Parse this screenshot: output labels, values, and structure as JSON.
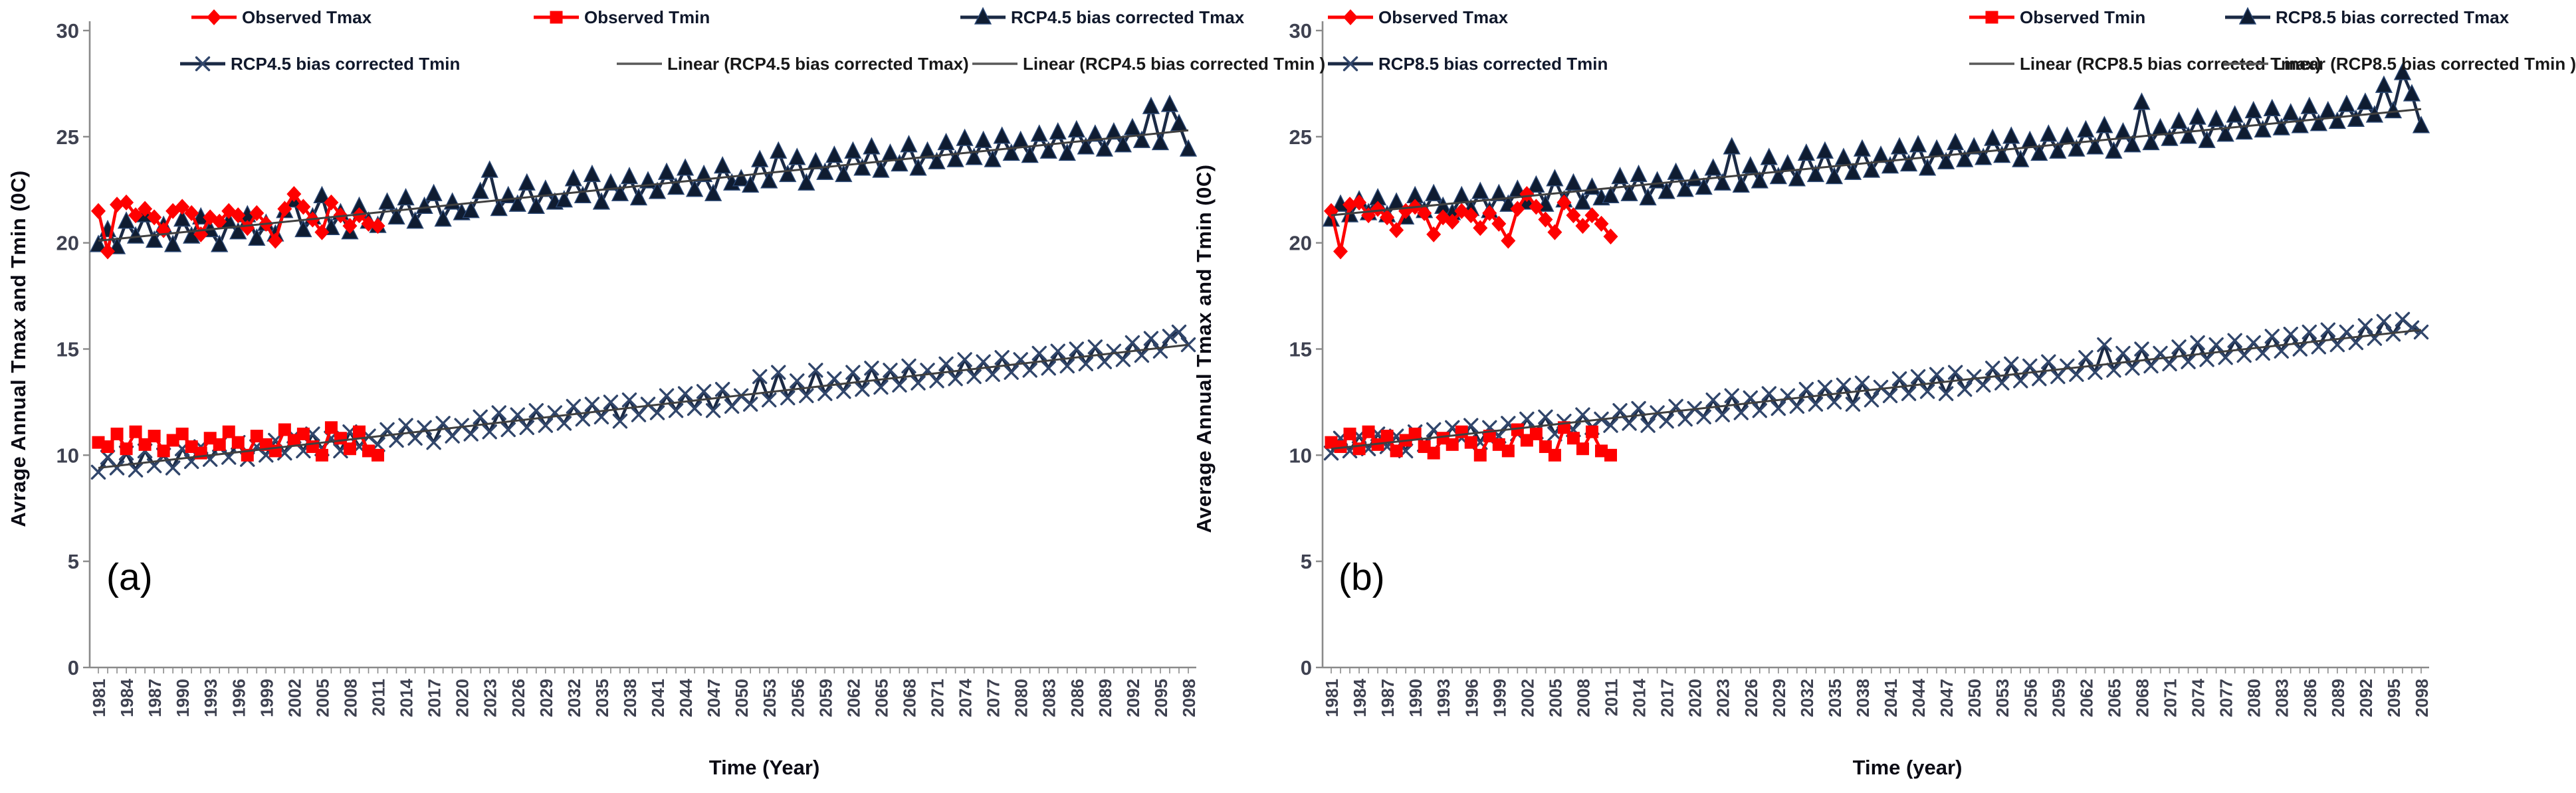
{
  "chart_data": [
    {
      "id": "a",
      "type": "line",
      "panel_label": "(a)",
      "xlabel": "Time (Year)",
      "ylabel": "Avrage Annual Tmax and Tmin (0C)",
      "ylim": [
        0,
        30
      ],
      "y_tick_step": 5,
      "y_tick_labels": [
        "0",
        "5",
        "10",
        "15",
        "20",
        "25",
        "30"
      ],
      "x_start": 1981,
      "x_end": 2098,
      "x_label_step": 3,
      "x_tick_labels": [
        "1981",
        "1984",
        "1987",
        "1990",
        "1993",
        "1996",
        "1999",
        "2002",
        "2005",
        "2008",
        "2011",
        "2014",
        "2017",
        "2020",
        "2023",
        "2026",
        "2029",
        "2032",
        "2035",
        "2038",
        "2041",
        "2044",
        "2047",
        "2050",
        "2053",
        "2056",
        "2059",
        "2062",
        "2065",
        "2068",
        "2071",
        "2074",
        "2077",
        "2080",
        "2083",
        "2086",
        "2089",
        "2092",
        "2095",
        "2098"
      ],
      "legend_rows": [
        [
          0,
          1,
          2
        ],
        [
          3,
          4,
          5
        ]
      ],
      "series": [
        {
          "name": "Observed Tmax",
          "kind": "line",
          "marker": "diamond",
          "color": "#FE0000",
          "year_start": 1981,
          "values": [
            21.5,
            19.6,
            21.8,
            21.9,
            21.3,
            21.6,
            21.2,
            20.6,
            21.5,
            21.7,
            21.4,
            20.4,
            21.2,
            21.0,
            21.5,
            21.3,
            20.7,
            21.4,
            20.9,
            20.1,
            21.6,
            22.3,
            21.7,
            21.1,
            20.5,
            21.9,
            21.3,
            20.8,
            21.3,
            20.9,
            20.8
          ]
        },
        {
          "name": "Observed Tmin",
          "kind": "line",
          "marker": "square",
          "color": "#FE0000",
          "year_start": 1981,
          "values": [
            10.6,
            10.4,
            11.0,
            10.3,
            11.1,
            10.5,
            10.9,
            10.2,
            10.7,
            11.0,
            10.4,
            10.1,
            10.8,
            10.5,
            11.1,
            10.6,
            10.0,
            10.9,
            10.5,
            10.2,
            11.2,
            10.7,
            11.0,
            10.4,
            10.0,
            11.3,
            10.8,
            10.3,
            11.1,
            10.2,
            10.0
          ]
        },
        {
          "name": "RCP4.5 bias corrected Tmax",
          "kind": "line",
          "marker": "triangle",
          "color": "#1B2A45",
          "year_start": 1981,
          "values": [
            19.9,
            20.6,
            19.8,
            21.0,
            20.3,
            21.3,
            20.1,
            20.8,
            19.9,
            21.1,
            20.3,
            21.2,
            20.6,
            19.9,
            21.0,
            20.5,
            21.3,
            20.2,
            20.9,
            20.4,
            21.5,
            22.0,
            20.6,
            21.2,
            22.2,
            20.7,
            21.4,
            20.5,
            21.7,
            21.0,
            20.8,
            21.9,
            21.2,
            22.1,
            21.0,
            21.7,
            22.3,
            21.1,
            21.9,
            21.4,
            21.5,
            22.4,
            23.4,
            21.6,
            22.2,
            21.8,
            22.8,
            21.7,
            22.5,
            21.9,
            22.0,
            23.0,
            22.2,
            23.2,
            21.9,
            22.8,
            22.3,
            23.1,
            22.1,
            22.9,
            22.4,
            23.3,
            22.6,
            23.5,
            22.5,
            23.2,
            22.3,
            23.6,
            22.8,
            23.0,
            22.7,
            23.9,
            22.9,
            24.3,
            23.2,
            24.0,
            22.8,
            23.8,
            23.3,
            24.1,
            23.2,
            24.3,
            23.5,
            24.5,
            23.4,
            24.2,
            23.7,
            24.6,
            23.5,
            24.3,
            23.8,
            24.7,
            23.9,
            24.9,
            24.0,
            24.8,
            23.9,
            25.0,
            24.2,
            24.8,
            24.1,
            25.1,
            24.3,
            25.2,
            24.2,
            25.3,
            24.5,
            25.1,
            24.4,
            25.2,
            24.6,
            25.4,
            24.8,
            26.4,
            24.7,
            26.5,
            25.6,
            24.4
          ]
        },
        {
          "name": "RCP4.5 bias corrected Tmin",
          "kind": "line",
          "marker": "x",
          "color": "#1B2A45",
          "year_start": 1981,
          "values": [
            9.2,
            9.9,
            9.4,
            10.1,
            9.3,
            10.2,
            9.5,
            10.0,
            9.4,
            10.3,
            9.7,
            10.4,
            9.8,
            10.5,
            9.9,
            10.6,
            9.8,
            10.4,
            10.0,
            10.7,
            10.1,
            10.9,
            10.2,
            11.0,
            10.3,
            10.8,
            10.2,
            11.1,
            10.4,
            10.9,
            10.5,
            11.2,
            10.7,
            11.4,
            10.8,
            11.3,
            10.6,
            11.5,
            10.9,
            11.4,
            11.0,
            11.8,
            11.1,
            12.0,
            11.2,
            11.9,
            11.3,
            12.1,
            11.4,
            12.0,
            11.5,
            12.3,
            11.7,
            12.4,
            11.8,
            12.5,
            11.6,
            12.6,
            11.9,
            12.4,
            12.0,
            12.8,
            12.1,
            12.9,
            12.2,
            13.0,
            12.1,
            13.1,
            12.3,
            12.8,
            12.4,
            13.7,
            12.6,
            13.9,
            12.7,
            13.5,
            12.8,
            14.0,
            12.9,
            13.6,
            13.0,
            13.9,
            13.1,
            14.1,
            13.2,
            14.0,
            13.3,
            14.2,
            13.4,
            14.0,
            13.5,
            14.3,
            13.6,
            14.5,
            13.7,
            14.4,
            13.8,
            14.6,
            13.9,
            14.5,
            14.0,
            14.8,
            14.1,
            14.9,
            14.2,
            15.0,
            14.3,
            15.1,
            14.4,
            14.9,
            14.5,
            15.3,
            14.7,
            15.5,
            14.9,
            15.6,
            15.8,
            15.2
          ]
        },
        {
          "name": "Linear (RCP4.5 bias corrected Tmax)",
          "kind": "trend",
          "color": "#3F3F3F",
          "start": 20.1,
          "end": 25.3
        },
        {
          "name": "Linear (RCP4.5 bias corrected Tmin )",
          "kind": "trend",
          "color": "#3F3F3F",
          "start": 9.4,
          "end": 15.2
        }
      ]
    },
    {
      "id": "b",
      "type": "line",
      "panel_label": "(b)",
      "xlabel": "Time (year)",
      "ylabel": "Average Annual Tmax and Tmin (0C)",
      "ylim": [
        0,
        30
      ],
      "y_tick_step": 5,
      "y_tick_labels": [
        "0",
        "5",
        "10",
        "15",
        "20",
        "25",
        "30"
      ],
      "x_start": 1981,
      "x_end": 2098,
      "x_label_step": 3,
      "x_tick_labels": [
        "1981",
        "1984",
        "1987",
        "1990",
        "1993",
        "1996",
        "1999",
        "2002",
        "2005",
        "2008",
        "2011",
        "2014",
        "2017",
        "2020",
        "2023",
        "2026",
        "2029",
        "2032",
        "2035",
        "2038",
        "2041",
        "2044",
        "2047",
        "2050",
        "2053",
        "2056",
        "2059",
        "2062",
        "2065",
        "2068",
        "2071",
        "2074",
        "2077",
        "2080",
        "2083",
        "2086",
        "2089",
        "2092",
        "2095",
        "2098"
      ],
      "legend_rows": [
        [
          0,
          1,
          2
        ],
        [
          3,
          4,
          5
        ]
      ],
      "series": [
        {
          "name": "Observed Tmax",
          "kind": "line",
          "marker": "diamond",
          "color": "#FE0000",
          "year_start": 1981,
          "values": [
            21.5,
            19.6,
            21.8,
            21.9,
            21.3,
            21.6,
            21.2,
            20.6,
            21.5,
            21.7,
            21.4,
            20.4,
            21.2,
            21.0,
            21.5,
            21.3,
            20.7,
            21.4,
            20.9,
            20.1,
            21.6,
            22.3,
            21.7,
            21.1,
            20.5,
            21.9,
            21.3,
            20.8,
            21.3,
            20.9,
            20.3
          ]
        },
        {
          "name": "Observed Tmin",
          "kind": "line",
          "marker": "square",
          "color": "#FE0000",
          "year_start": 1981,
          "values": [
            10.6,
            10.4,
            11.0,
            10.3,
            11.1,
            10.5,
            10.9,
            10.2,
            10.7,
            11.0,
            10.4,
            10.1,
            10.8,
            10.5,
            11.1,
            10.6,
            10.0,
            10.9,
            10.5,
            10.2,
            11.2,
            10.7,
            11.0,
            10.4,
            10.0,
            11.3,
            10.8,
            10.3,
            11.1,
            10.2,
            10.0
          ]
        },
        {
          "name": "RCP8.5 bias corrected Tmax",
          "kind": "line",
          "marker": "triangle",
          "color": "#1B2A45",
          "year_start": 1981,
          "values": [
            21.1,
            21.8,
            21.3,
            22.0,
            21.4,
            22.1,
            21.3,
            21.9,
            21.2,
            22.2,
            21.5,
            22.3,
            21.7,
            21.4,
            22.2,
            21.6,
            22.4,
            21.5,
            22.3,
            21.8,
            22.5,
            21.9,
            22.7,
            21.8,
            23.0,
            22.0,
            22.8,
            21.9,
            22.6,
            22.1,
            22.2,
            23.1,
            22.3,
            23.2,
            22.1,
            22.9,
            22.4,
            23.3,
            22.5,
            23.0,
            22.6,
            23.5,
            22.8,
            24.5,
            22.7,
            23.6,
            22.9,
            24.0,
            23.1,
            23.7,
            23.0,
            24.2,
            23.2,
            24.3,
            23.1,
            24.0,
            23.3,
            24.4,
            23.4,
            24.1,
            23.6,
            24.5,
            23.7,
            24.6,
            23.5,
            24.4,
            23.8,
            24.7,
            23.9,
            24.5,
            24.0,
            24.9,
            24.1,
            25.0,
            23.9,
            24.8,
            24.2,
            25.1,
            24.3,
            25.0,
            24.4,
            25.3,
            24.5,
            25.5,
            24.3,
            25.2,
            24.6,
            26.6,
            24.7,
            25.4,
            24.9,
            25.7,
            25.0,
            25.9,
            24.8,
            25.8,
            25.1,
            26.0,
            25.2,
            26.2,
            25.3,
            26.3,
            25.4,
            26.1,
            25.5,
            26.4,
            25.6,
            26.2,
            25.7,
            26.5,
            25.8,
            26.6,
            26.0,
            27.4,
            26.2,
            28.0,
            27.0,
            25.5
          ]
        },
        {
          "name": "RCP8.5 bias corrected Tmin",
          "kind": "line",
          "marker": "x",
          "color": "#1B2A45",
          "year_start": 1981,
          "values": [
            10.1,
            10.8,
            10.2,
            10.9,
            10.3,
            11.0,
            10.4,
            10.9,
            10.2,
            11.1,
            10.5,
            11.2,
            10.7,
            11.3,
            10.8,
            11.4,
            10.6,
            11.3,
            10.9,
            11.5,
            11.0,
            11.7,
            11.1,
            11.8,
            11.0,
            11.6,
            11.2,
            11.9,
            11.3,
            11.7,
            11.4,
            12.1,
            11.5,
            12.2,
            11.4,
            12.0,
            11.6,
            12.3,
            11.7,
            12.2,
            11.8,
            12.6,
            11.9,
            12.8,
            12.0,
            12.7,
            12.1,
            12.9,
            12.2,
            12.8,
            12.3,
            13.1,
            12.4,
            13.2,
            12.5,
            13.3,
            12.4,
            13.4,
            12.6,
            13.2,
            12.8,
            13.6,
            12.9,
            13.7,
            13.0,
            13.8,
            12.9,
            13.9,
            13.1,
            13.7,
            13.3,
            14.1,
            13.4,
            14.3,
            13.5,
            14.2,
            13.6,
            14.4,
            13.7,
            14.2,
            13.8,
            14.6,
            13.9,
            15.2,
            14.0,
            14.8,
            14.1,
            15.0,
            14.2,
            14.8,
            14.3,
            15.1,
            14.4,
            15.3,
            14.5,
            15.2,
            14.6,
            15.4,
            14.7,
            15.3,
            14.8,
            15.6,
            14.9,
            15.7,
            15.0,
            15.8,
            15.1,
            15.9,
            15.2,
            15.8,
            15.3,
            16.1,
            15.5,
            16.3,
            15.7,
            16.4,
            16.0,
            15.8
          ]
        },
        {
          "name": "Linear (RCP8.5 bias corrected Tmax)",
          "kind": "trend",
          "color": "#3F3F3F",
          "start": 21.3,
          "end": 26.3
        },
        {
          "name": "Linear (RCP8.5 bias corrected Tmin )",
          "kind": "trend",
          "color": "#3F3F3F",
          "start": 10.3,
          "end": 15.9
        }
      ]
    }
  ]
}
